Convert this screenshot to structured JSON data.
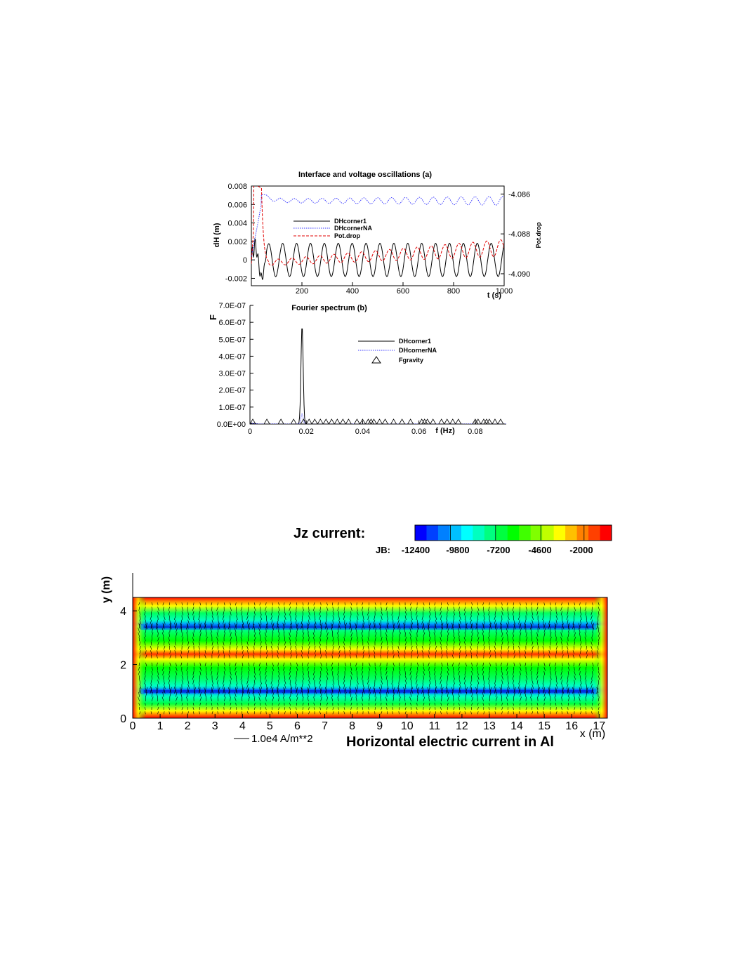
{
  "chart_data": [
    {
      "type": "line",
      "title": "Interface and voltage oscillations (a)",
      "xlabel": "t (s)",
      "ylabel": "dH (m)",
      "y2label": "Pot.drop",
      "xlim": [
        0,
        1000
      ],
      "ylim": [
        -0.0028,
        0.008
      ],
      "y2lim": [
        -4.0906,
        -4.0856
      ],
      "x_ticks": [
        "200",
        "400",
        "600",
        "800",
        "1000"
      ],
      "y_ticks": [
        "0.008",
        "0.006",
        "0.004",
        "0.002",
        "0",
        "-0.002"
      ],
      "y2_ticks": [
        "-4.086",
        "-4.088",
        "-4.090"
      ],
      "legend_position": "center",
      "series": [
        {
          "name": "DHcorner1",
          "axis": "left",
          "color": "#000000",
          "dash": "solid",
          "mean": 0.0,
          "amplitude": 0.0018,
          "period": 55,
          "settle": 15
        },
        {
          "name": "DHcornerNA",
          "axis": "left",
          "color": "#3a3aff",
          "dash": "dotted",
          "mean": 0.0064,
          "amplitude": 0.0003,
          "period": 55,
          "settle": 40
        },
        {
          "name": "Pot.drop",
          "axis": "right",
          "color": "#e00000",
          "dash": "dashed",
          "mean": -4.0895,
          "amplitude": 0.0003,
          "period": 55,
          "settle": 55
        }
      ]
    },
    {
      "type": "line",
      "title": "Fourier spectrum (b)",
      "xlabel": "f (Hz)",
      "ylabel": "F",
      "xlim": [
        0,
        0.091
      ],
      "ylim": [
        0,
        7e-07
      ],
      "x_ticks": [
        "0",
        "0.02",
        "0.04",
        "0.06",
        "0.08"
      ],
      "y_ticks": [
        "7.0E-07",
        "6.0E-07",
        "5.0E-07",
        "4.0E-07",
        "3.0E-07",
        "2.0E-07",
        "1.0E-07",
        "0.0E+00"
      ],
      "legend_position": "right",
      "series": [
        {
          "name": "DHcorner1",
          "color": "#000000",
          "dash": "solid",
          "peak_f": 0.0185,
          "peak_value": 5.8e-07
        },
        {
          "name": "DHcornerNA",
          "color": "#3a3aff",
          "dash": "dotted",
          "peak_f": 0.0185,
          "peak_value": 6e-08
        },
        {
          "name": "Fgravity",
          "marker": "triangle",
          "x": [
            0.001,
            0.006,
            0.011,
            0.0155,
            0.019,
            0.021,
            0.023,
            0.025,
            0.027,
            0.029,
            0.031,
            0.033,
            0.035,
            0.038,
            0.04,
            0.042,
            0.043,
            0.044,
            0.046,
            0.048,
            0.051,
            0.054,
            0.057,
            0.061,
            0.062,
            0.063,
            0.065,
            0.068,
            0.07,
            0.072,
            0.074,
            0.08,
            0.081,
            0.083,
            0.084,
            0.085,
            0.087,
            0.089
          ],
          "values": 0
        }
      ]
    },
    {
      "type": "heatmap",
      "title": "Horizontal electric current in Al",
      "colorbar_title": "Jz current:",
      "colorbar_prefix": "JB:",
      "colorbar_ticks": [
        "-12400",
        "-9800",
        "-7200",
        "-4600",
        "-2000"
      ],
      "colorbar_colors": [
        "#0000ff",
        "#0040ff",
        "#0080ff",
        "#00c0ff",
        "#00ffff",
        "#00ffc0",
        "#00ff80",
        "#00ff40",
        "#00ff00",
        "#40ff00",
        "#80ff00",
        "#c0ff00",
        "#ffff00",
        "#ffc000",
        "#ff8000",
        "#ff4000",
        "#ff0000"
      ],
      "xlabel": "x (m)",
      "ylabel": "y (m)",
      "xlim": [
        0,
        17.3
      ],
      "ylim": [
        0,
        4.5
      ],
      "x_ticks": [
        "0",
        "1",
        "2",
        "3",
        "4",
        "5",
        "6",
        "7",
        "8",
        "9",
        "10",
        "11",
        "12",
        "13",
        "14",
        "15",
        "16",
        "17"
      ],
      "y_ticks": [
        "0",
        "2",
        "4"
      ],
      "vector_scale_label": "1.0e4 A/m**2",
      "blue_bands_y": [
        1.0,
        3.4
      ]
    }
  ]
}
